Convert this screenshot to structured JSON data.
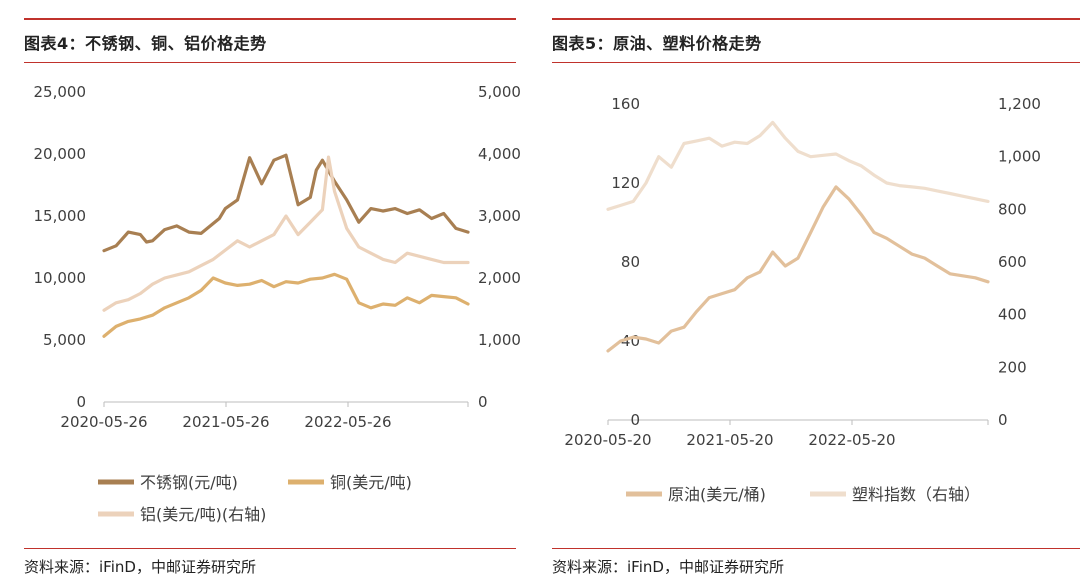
{
  "charts": {
    "left": {
      "title_prefix": "图表4：",
      "title_text": "不锈钢、铜、铝价格走势",
      "source_prefix": "资料来源：",
      "source_text": "iFinD，中邮证券研究所"
    },
    "right": {
      "title_prefix": "图表5：",
      "title_text": "原油、塑料价格走势",
      "source_prefix": "资料来源：",
      "source_text": "iFinD，中邮证券研究所"
    }
  },
  "colors": {
    "frame_red": "#c0322c",
    "stainless": "#a87f52",
    "copper": "#ddb06e",
    "aluminium": "#ecd2bb",
    "crude": "#e2c09b",
    "plastic": "#efdecd"
  },
  "chart_data": [
    {
      "type": "line",
      "x_tick_labels": [
        "2020-05-26",
        "2021-05-26",
        "2022-05-26"
      ],
      "y_left": {
        "ticks": [
          "0",
          "5,000",
          "10,000",
          "15,000",
          "20,000",
          "25,000"
        ],
        "ylim": [
          0,
          25000
        ]
      },
      "y_right": {
        "ticks": [
          "0",
          "1,000",
          "2,000",
          "3,000",
          "4,000",
          "5,000"
        ],
        "ylim": [
          0,
          5000
        ]
      },
      "x_range_months": [
        0,
        30
      ],
      "series": [
        {
          "name": "不锈钢(元/吨)",
          "axis": "left",
          "color": "#a87f52",
          "x": [
            0,
            1,
            2,
            3,
            3.5,
            4,
            5,
            6,
            7,
            8,
            9.5,
            10,
            11,
            12,
            13,
            14,
            15,
            16,
            17,
            17.5,
            18,
            19,
            20,
            21,
            22,
            23,
            24,
            25,
            26,
            27,
            28,
            29,
            30
          ],
          "y": [
            12200,
            12600,
            13700,
            13500,
            12900,
            13000,
            13900,
            14200,
            13700,
            13600,
            14800,
            15600,
            16300,
            19700,
            17600,
            19500,
            19900,
            15900,
            16500,
            18700,
            19500,
            17800,
            16300,
            14500,
            15600,
            15400,
            15600,
            15200,
            15500,
            14800,
            15200,
            14000,
            13700
          ]
        },
        {
          "name": "铜(美元/吨)",
          "axis": "left",
          "color": "#ddb06e",
          "x": [
            0,
            1,
            2,
            3,
            4,
            5,
            6,
            7,
            8,
            9,
            10,
            11,
            12,
            13,
            14,
            15,
            16,
            17,
            18,
            19,
            20,
            21,
            22,
            23,
            24,
            25,
            26,
            27,
            28,
            29,
            30
          ],
          "y": [
            5300,
            6100,
            6500,
            6700,
            7000,
            7600,
            8000,
            8400,
            9000,
            10000,
            9600,
            9400,
            9500,
            9800,
            9300,
            9700,
            9600,
            9900,
            10000,
            10300,
            9900,
            8000,
            7600,
            7900,
            7800,
            8400,
            8000,
            8600,
            8500,
            8400,
            7900
          ]
        },
        {
          "name": "铝(美元/吨)(右轴)",
          "axis": "right",
          "color": "#ecd2bb",
          "x": [
            0,
            1,
            2,
            3,
            4,
            5,
            6,
            7,
            8,
            9,
            10,
            11,
            12,
            13,
            14,
            15,
            16,
            17,
            18,
            18.5,
            19,
            20,
            21,
            22,
            23,
            24,
            25,
            26,
            27,
            28,
            29,
            30
          ],
          "y": [
            1480,
            1600,
            1650,
            1750,
            1900,
            2000,
            2050,
            2100,
            2200,
            2300,
            2450,
            2600,
            2500,
            2600,
            2700,
            3000,
            2700,
            2900,
            3100,
            3950,
            3400,
            2800,
            2500,
            2400,
            2300,
            2250,
            2400,
            2350,
            2300,
            2250,
            2250,
            2250
          ]
        }
      ]
    },
    {
      "type": "line",
      "x_tick_labels": [
        "2020-05-20",
        "2021-05-20",
        "2022-05-20"
      ],
      "y_left": {
        "ticks": [
          "0",
          "40",
          "80",
          "120",
          "160"
        ],
        "ylim": [
          0,
          160
        ]
      },
      "y_right": {
        "ticks": [
          "0",
          "200",
          "400",
          "600",
          "800",
          "1,000",
          "1,200"
        ],
        "ylim": [
          0,
          1200
        ]
      },
      "x_range_months": [
        0,
        30
      ],
      "series": [
        {
          "name": "原油(美元/桶)",
          "axis": "left",
          "color": "#e2c09b",
          "x": [
            0,
            1,
            2,
            3,
            4,
            5,
            6,
            7,
            8,
            9,
            10,
            11,
            12,
            13,
            14,
            15,
            16,
            17,
            18,
            19,
            20,
            21,
            22,
            23,
            24,
            25,
            26,
            27,
            28,
            29,
            30
          ],
          "y": [
            35,
            40,
            42,
            41,
            39,
            45,
            47,
            55,
            62,
            64,
            66,
            72,
            75,
            85,
            78,
            82,
            95,
            108,
            118,
            112,
            104,
            95,
            92,
            88,
            84,
            82,
            78,
            74,
            73,
            72,
            70
          ]
        },
        {
          "name": "塑料指数（右轴）",
          "axis": "right",
          "color": "#efdecd",
          "x": [
            0,
            1,
            2,
            3,
            4,
            5,
            6,
            7,
            8,
            9,
            10,
            11,
            12,
            13,
            14,
            15,
            16,
            17,
            18,
            19,
            20,
            21,
            22,
            23,
            24,
            25,
            26,
            27,
            28,
            29,
            30
          ],
          "y": [
            800,
            815,
            830,
            900,
            1000,
            960,
            1050,
            1060,
            1070,
            1040,
            1055,
            1050,
            1080,
            1130,
            1070,
            1020,
            1000,
            1005,
            1010,
            985,
            965,
            930,
            900,
            890,
            885,
            880,
            870,
            860,
            850,
            840,
            830
          ]
        }
      ]
    }
  ]
}
